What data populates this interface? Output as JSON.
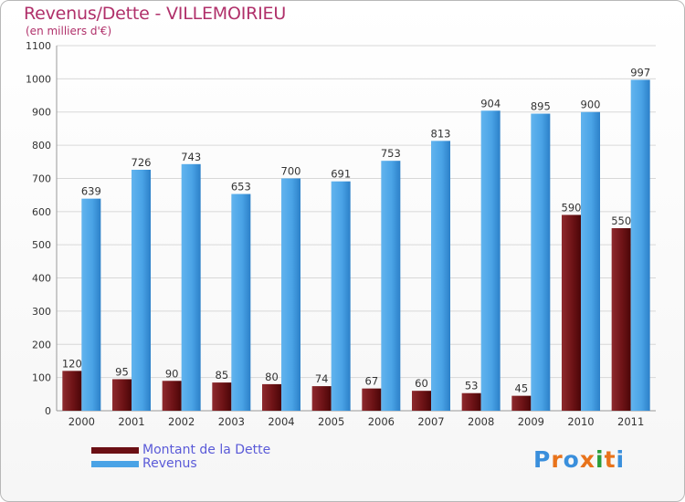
{
  "header": {
    "title": "Revenus/Dette - VILLEMOIRIEU",
    "subtitle": "(en milliers d'€)"
  },
  "legend": {
    "items": [
      {
        "label": "Montant de la Dette",
        "color": "#6b0f14"
      },
      {
        "label": "Revenus",
        "color": "#4aa3e6"
      }
    ]
  },
  "logo": {
    "text": "Proxiti",
    "letter_colors": [
      "#3a8fdc",
      "#e8731b",
      "#3a8fdc",
      "#e8731b",
      "#2a9d3a",
      "#e8731b",
      "#3a8fdc"
    ]
  },
  "chart_data": {
    "type": "bar",
    "title": "Revenus/Dette - VILLEMOIRIEU",
    "ylabel": "(en milliers d'€)",
    "xlabel": "",
    "categories": [
      "2000",
      "2001",
      "2002",
      "2003",
      "2004",
      "2005",
      "2006",
      "2007",
      "2008",
      "2009",
      "2010",
      "2011"
    ],
    "series": [
      {
        "name": "Montant de la Dette",
        "color": "#6b0f14",
        "values": [
          120,
          95,
          90,
          85,
          80,
          74,
          67,
          60,
          53,
          45,
          590,
          550
        ]
      },
      {
        "name": "Revenus",
        "color": "#4aa3e6",
        "values": [
          639,
          726,
          743,
          653,
          700,
          691,
          753,
          813,
          904,
          895,
          900,
          997
        ]
      }
    ],
    "ylim": [
      0,
      1100
    ],
    "yticks": [
      0,
      100,
      200,
      300,
      400,
      500,
      600,
      700,
      800,
      900,
      1000,
      1100
    ],
    "grid": true,
    "legend_position": "bottom-left"
  }
}
